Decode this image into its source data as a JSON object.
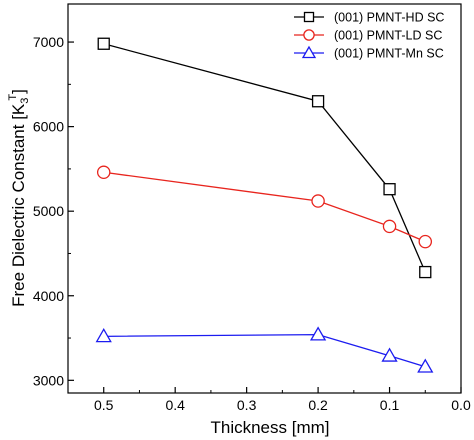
{
  "chart_data": {
    "type": "line",
    "title": "",
    "xlabel": "Thickness [mm]",
    "ylabel_main": "Free Dielectric Constant [K",
    "ylabel_sub": "3",
    "ylabel_sup": "T",
    "ylabel_close": "]",
    "xlim": [
      0.55,
      0.0
    ],
    "ylim": [
      2850,
      7450
    ],
    "x_reversed": true,
    "x_ticks": [
      0.5,
      0.4,
      0.3,
      0.2,
      0.1,
      0.0
    ],
    "x_tick_labels": [
      "0.5",
      "0.4",
      "0.3",
      "0.2",
      "0.1",
      "0.0"
    ],
    "y_ticks": [
      3000,
      4000,
      5000,
      6000,
      7000
    ],
    "y_tick_labels": [
      "3000",
      "4000",
      "5000",
      "6000",
      "7000"
    ],
    "grid": false,
    "legend_position": "top-right",
    "series": [
      {
        "name": "(001) PMNT-HD SC",
        "color": "#000000",
        "marker": "square",
        "x": [
          0.5,
          0.2,
          0.1,
          0.05
        ],
        "y": [
          6980,
          6300,
          5260,
          4280
        ]
      },
      {
        "name": "(001) PMNT-LD SC",
        "color": "#e8251e",
        "marker": "circle",
        "x": [
          0.5,
          0.2,
          0.1,
          0.05
        ],
        "y": [
          5460,
          5120,
          4820,
          4640
        ]
      },
      {
        "name": "(001) PMNT-Mn SC",
        "color": "#1c1cf0",
        "marker": "triangle",
        "x": [
          0.5,
          0.2,
          0.1,
          0.05
        ],
        "y": [
          3520,
          3540,
          3290,
          3160
        ]
      }
    ]
  }
}
